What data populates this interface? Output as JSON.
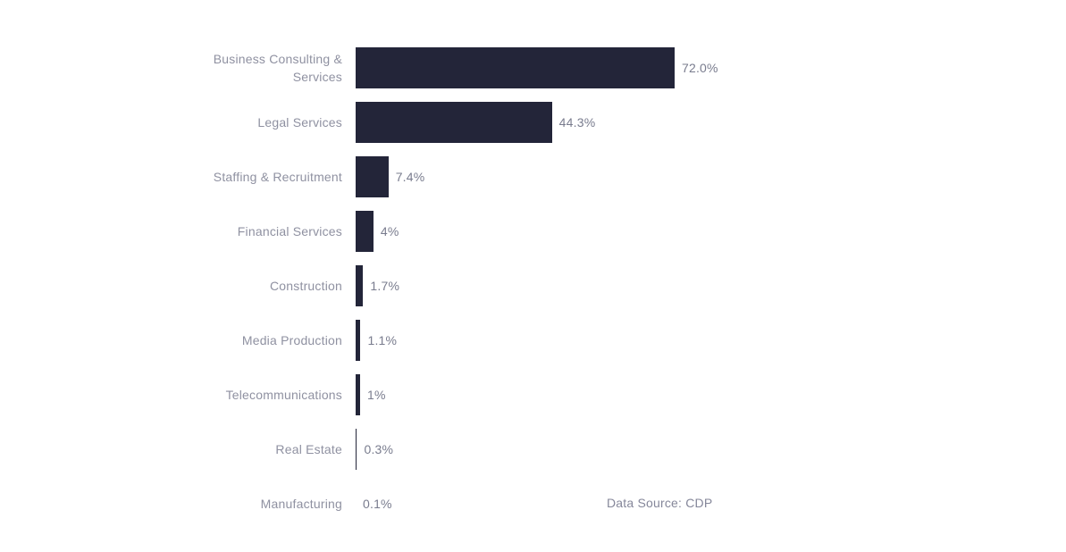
{
  "chart_data": {
    "type": "bar",
    "orientation": "horizontal",
    "title": "",
    "xlabel": "",
    "ylabel": "",
    "xlim": [
      0,
      72
    ],
    "grid": false,
    "legend": false,
    "categories": [
      "Business Consulting & Services",
      "Legal Services",
      "Staffing & Recruitment",
      "Financial Services",
      "Construction",
      "Media Production",
      "Telecommunications",
      "Real Estate",
      "Manufacturing"
    ],
    "values": [
      72.0,
      44.3,
      7.4,
      4,
      1.7,
      1.1,
      1,
      0.3,
      0.1
    ],
    "value_labels": [
      "72.0%",
      "44.3%",
      "7.4%",
      "4%",
      "1.7%",
      "1.1%",
      "1%",
      "0.3%",
      "0.1%"
    ],
    "bar_color": "#232539",
    "category_label_color": "#8f91a1",
    "value_label_color": "#797c8e"
  },
  "footer": {
    "data_source": "Data Source: CDP"
  }
}
